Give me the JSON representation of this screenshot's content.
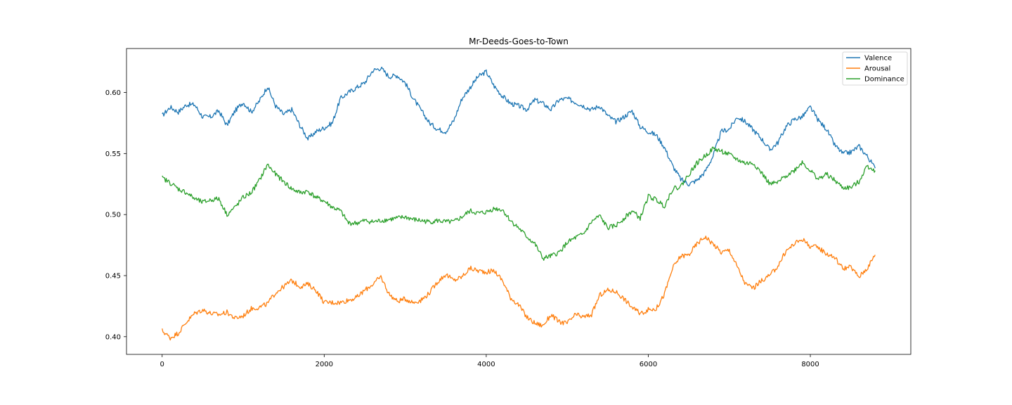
{
  "chart_data": {
    "type": "line",
    "title": "Mr-Deeds-Goes-to-Town",
    "xlabel": "",
    "ylabel": "",
    "xlim": [
      -440,
      9240
    ],
    "ylim": [
      0.3855,
      0.636
    ],
    "xticks": [
      0,
      2000,
      4000,
      6000,
      8000
    ],
    "xtick_labels": [
      "0",
      "2000",
      "4000",
      "6000",
      "8000"
    ],
    "yticks": [
      0.4,
      0.45,
      0.5,
      0.55,
      0.6
    ],
    "ytick_labels": [
      "0.40",
      "0.45",
      "0.50",
      "0.55",
      "0.60"
    ],
    "grid": false,
    "legend_position": "top-right",
    "x": [
      0,
      100,
      200,
      300,
      400,
      500,
      600,
      700,
      800,
      900,
      1000,
      1100,
      1200,
      1300,
      1400,
      1500,
      1600,
      1700,
      1800,
      1900,
      2000,
      2100,
      2200,
      2300,
      2400,
      2500,
      2600,
      2700,
      2800,
      2900,
      3000,
      3100,
      3200,
      3300,
      3400,
      3500,
      3600,
      3700,
      3800,
      3900,
      4000,
      4100,
      4200,
      4300,
      4400,
      4500,
      4600,
      4700,
      4800,
      4900,
      5000,
      5100,
      5200,
      5300,
      5400,
      5500,
      5600,
      5700,
      5800,
      5900,
      6000,
      6100,
      6200,
      6300,
      6400,
      6500,
      6600,
      6700,
      6800,
      6900,
      7000,
      7100,
      7200,
      7300,
      7400,
      7500,
      7600,
      7700,
      7800,
      7900,
      8000,
      8100,
      8200,
      8300,
      8400,
      8500,
      8600,
      8700,
      8800
    ],
    "series": [
      {
        "name": "Valence",
        "color": "#1f77b4",
        "values": [
          0.581,
          0.588,
          0.584,
          0.59,
          0.59,
          0.58,
          0.58,
          0.585,
          0.573,
          0.585,
          0.592,
          0.584,
          0.593,
          0.605,
          0.589,
          0.582,
          0.586,
          0.573,
          0.562,
          0.568,
          0.571,
          0.575,
          0.595,
          0.6,
          0.604,
          0.608,
          0.618,
          0.62,
          0.613,
          0.614,
          0.608,
          0.595,
          0.585,
          0.575,
          0.57,
          0.568,
          0.577,
          0.595,
          0.604,
          0.613,
          0.617,
          0.605,
          0.597,
          0.591,
          0.589,
          0.586,
          0.594,
          0.591,
          0.586,
          0.594,
          0.595,
          0.592,
          0.589,
          0.586,
          0.589,
          0.581,
          0.576,
          0.58,
          0.585,
          0.572,
          0.568,
          0.565,
          0.555,
          0.54,
          0.529,
          0.525,
          0.528,
          0.535,
          0.548,
          0.568,
          0.57,
          0.58,
          0.576,
          0.569,
          0.562,
          0.553,
          0.559,
          0.572,
          0.578,
          0.58,
          0.588,
          0.577,
          0.57,
          0.557,
          0.55,
          0.551,
          0.556,
          0.548,
          0.538
        ]
      },
      {
        "name": "Arousal",
        "color": "#ff7f0e",
        "values": [
          0.405,
          0.399,
          0.403,
          0.412,
          0.419,
          0.422,
          0.419,
          0.418,
          0.42,
          0.415,
          0.417,
          0.423,
          0.424,
          0.427,
          0.436,
          0.441,
          0.446,
          0.441,
          0.443,
          0.438,
          0.428,
          0.428,
          0.428,
          0.43,
          0.432,
          0.438,
          0.443,
          0.449,
          0.435,
          0.429,
          0.431,
          0.428,
          0.43,
          0.436,
          0.445,
          0.451,
          0.446,
          0.449,
          0.456,
          0.454,
          0.453,
          0.454,
          0.446,
          0.432,
          0.426,
          0.416,
          0.411,
          0.409,
          0.418,
          0.412,
          0.411,
          0.418,
          0.416,
          0.418,
          0.434,
          0.438,
          0.437,
          0.431,
          0.424,
          0.419,
          0.422,
          0.423,
          0.435,
          0.456,
          0.466,
          0.467,
          0.476,
          0.482,
          0.476,
          0.469,
          0.471,
          0.457,
          0.443,
          0.44,
          0.446,
          0.45,
          0.458,
          0.47,
          0.476,
          0.48,
          0.474,
          0.473,
          0.468,
          0.465,
          0.456,
          0.457,
          0.449,
          0.456,
          0.467
        ]
      },
      {
        "name": "Dominance",
        "color": "#2ca02c",
        "values": [
          0.53,
          0.526,
          0.521,
          0.518,
          0.513,
          0.51,
          0.512,
          0.513,
          0.5,
          0.506,
          0.514,
          0.518,
          0.528,
          0.541,
          0.533,
          0.527,
          0.521,
          0.518,
          0.519,
          0.514,
          0.511,
          0.506,
          0.503,
          0.493,
          0.493,
          0.495,
          0.494,
          0.495,
          0.496,
          0.497,
          0.498,
          0.496,
          0.495,
          0.494,
          0.495,
          0.494,
          0.494,
          0.498,
          0.503,
          0.501,
          0.502,
          0.505,
          0.504,
          0.495,
          0.489,
          0.482,
          0.476,
          0.464,
          0.466,
          0.469,
          0.477,
          0.481,
          0.484,
          0.494,
          0.499,
          0.489,
          0.491,
          0.497,
          0.503,
          0.497,
          0.515,
          0.512,
          0.507,
          0.521,
          0.523,
          0.533,
          0.542,
          0.548,
          0.554,
          0.552,
          0.549,
          0.545,
          0.542,
          0.542,
          0.534,
          0.525,
          0.526,
          0.532,
          0.536,
          0.543,
          0.536,
          0.529,
          0.533,
          0.528,
          0.522,
          0.522,
          0.527,
          0.54,
          0.536
        ]
      }
    ]
  }
}
